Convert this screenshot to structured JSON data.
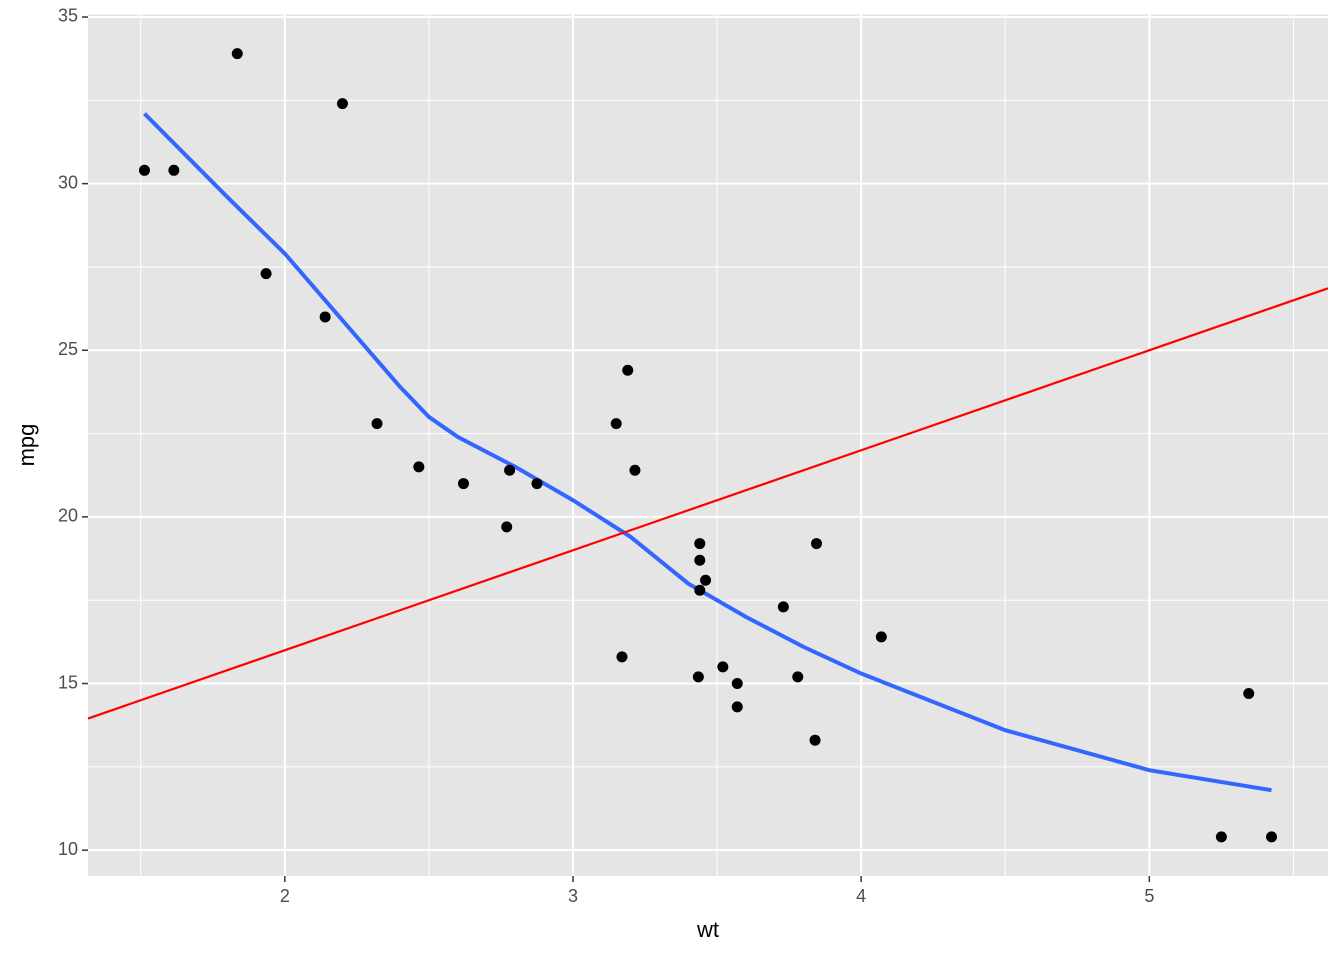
{
  "chart_data": {
    "type": "scatter",
    "x_label": "wt",
    "y_label": "mpg",
    "xlim": [
      1.317,
      5.62
    ],
    "ylim": [
      9.225,
      35.075
    ],
    "xticks": [
      2,
      3,
      4,
      5
    ],
    "yticks": [
      10,
      15,
      20,
      25,
      30,
      35
    ],
    "grid": true,
    "series": [
      {
        "type": "scatter",
        "color": "#000000",
        "x": [
          2.62,
          2.875,
          2.32,
          3.215,
          3.44,
          3.46,
          3.57,
          3.19,
          3.15,
          3.44,
          3.44,
          4.07,
          3.73,
          3.78,
          5.25,
          5.424,
          5.345,
          2.2,
          1.615,
          1.835,
          2.465,
          3.52,
          3.435,
          3.84,
          3.845,
          1.935,
          2.14,
          1.513,
          3.17,
          2.77,
          3.57,
          2.78
        ],
        "values": [
          21.0,
          21.0,
          22.8,
          21.4,
          18.7,
          18.1,
          14.3,
          24.4,
          22.8,
          19.2,
          17.8,
          16.4,
          17.3,
          15.2,
          10.4,
          10.4,
          14.7,
          32.4,
          30.4,
          33.9,
          21.5,
          15.5,
          15.2,
          13.3,
          19.2,
          27.3,
          26.0,
          30.4,
          15.8,
          19.7,
          15.0,
          21.4
        ]
      },
      {
        "type": "line",
        "color": "#3366ff",
        "x": [
          1.513,
          1.8,
          2.0,
          2.2,
          2.4,
          2.5,
          2.6,
          2.8,
          3.0,
          3.2,
          3.4,
          3.6,
          3.8,
          4.0,
          4.5,
          5.0,
          5.424
        ],
        "values": [
          32.1,
          29.6,
          27.9,
          25.9,
          23.9,
          23.0,
          22.4,
          21.5,
          20.5,
          19.4,
          18.0,
          17.0,
          16.1,
          15.3,
          13.6,
          12.4,
          11.8
        ]
      },
      {
        "type": "line",
        "color": "#ff0000",
        "x": [
          1.317,
          5.62
        ],
        "values": [
          13.95,
          26.86
        ]
      }
    ]
  }
}
